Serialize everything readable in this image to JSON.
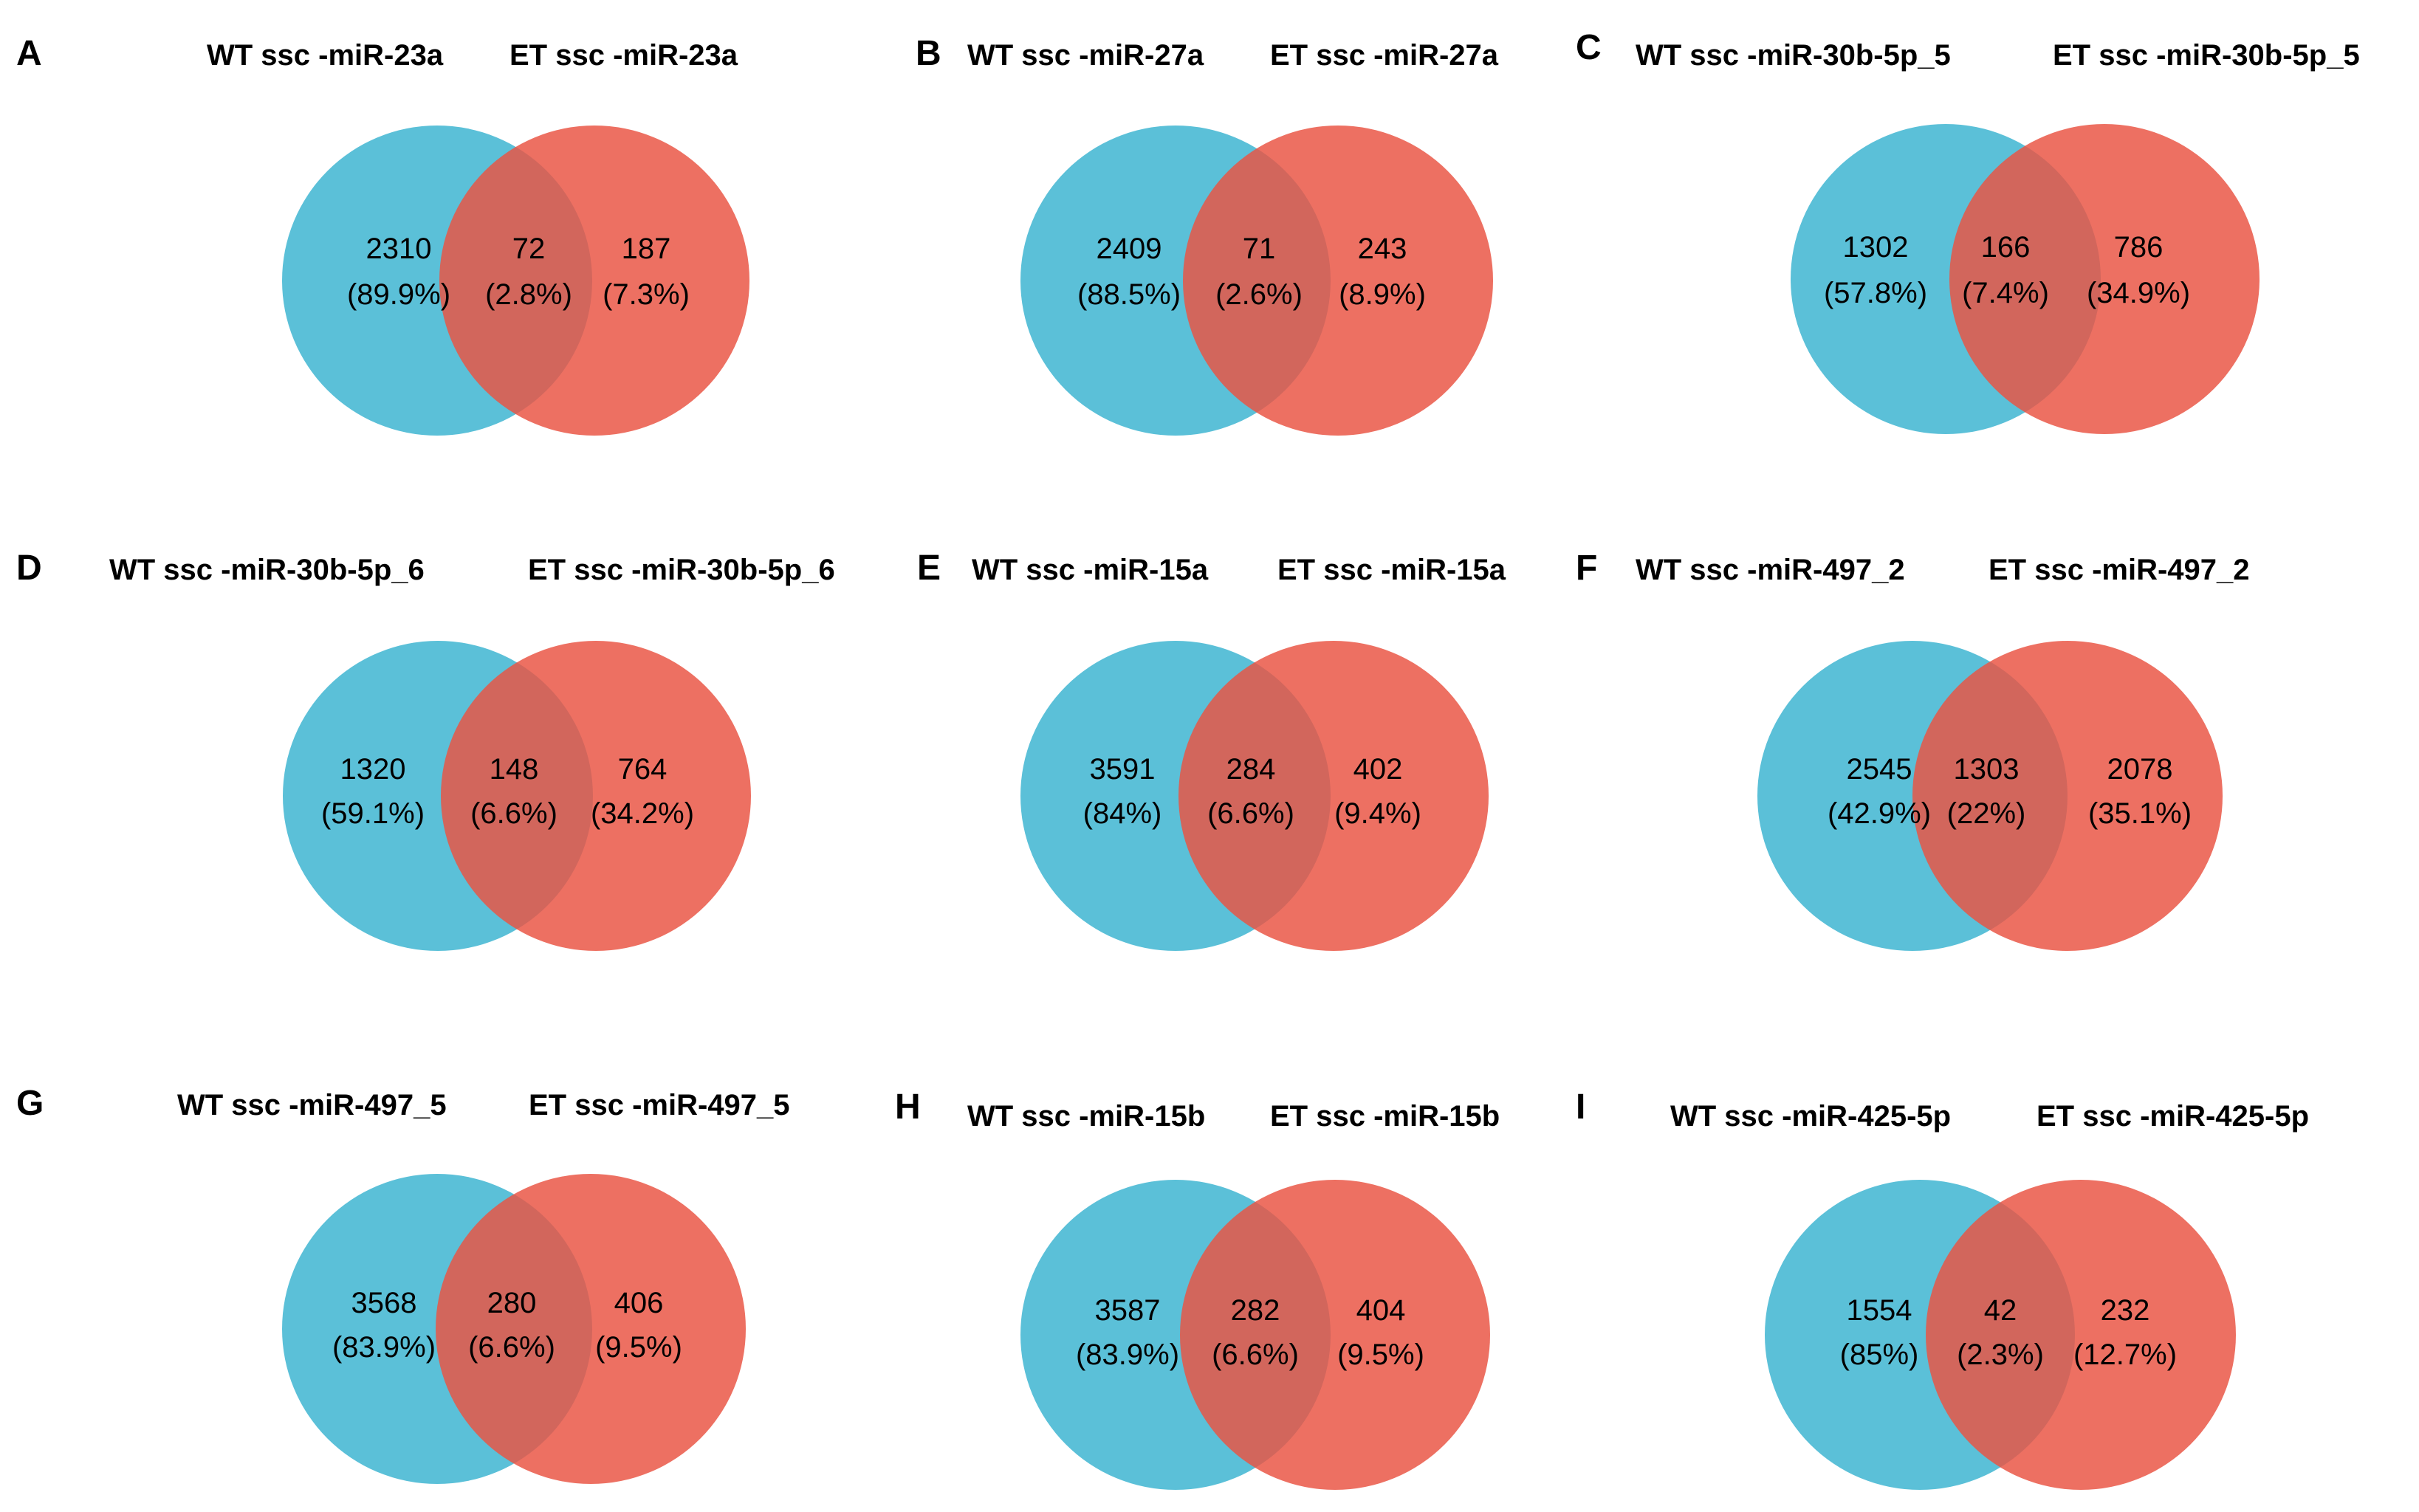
{
  "colors": {
    "wt": "#5bc0d8",
    "et": "#ea5544",
    "overlap": "#c65a50"
  },
  "panels": [
    {
      "letter": "A",
      "title_wt": "WT ssc -miR-23a",
      "title_et": "ET ssc -miR-23a",
      "left": {
        "count": "2310",
        "pct": "(89.9%)"
      },
      "overlap": {
        "count": "72",
        "pct": "(2.8%)"
      },
      "right": {
        "count": "187",
        "pct": "(7.3%)"
      }
    },
    {
      "letter": "B",
      "title_wt": "WT ssc -miR-27a",
      "title_et": "ET ssc -miR-27a",
      "left": {
        "count": "2409",
        "pct": "(88.5%)"
      },
      "overlap": {
        "count": "71",
        "pct": "(2.6%)"
      },
      "right": {
        "count": "243",
        "pct": "(8.9%)"
      }
    },
    {
      "letter": "C",
      "title_wt": "WT ssc  -miR-30b-5p_5",
      "title_et": "ET ssc  -miR-30b-5p_5",
      "left": {
        "count": "1302",
        "pct": "(57.8%)"
      },
      "overlap": {
        "count": "166",
        "pct": "(7.4%)"
      },
      "right": {
        "count": "786",
        "pct": "(34.9%)"
      }
    },
    {
      "letter": "D",
      "title_wt": "WT ssc  -miR-30b-5p_6",
      "title_et": "ET ssc  -miR-30b-5p_6",
      "left": {
        "count": "1320",
        "pct": "(59.1%)"
      },
      "overlap": {
        "count": "148",
        "pct": "(6.6%)"
      },
      "right": {
        "count": "764",
        "pct": "(34.2%)"
      }
    },
    {
      "letter": "E",
      "title_wt": "WT ssc -miR-15a",
      "title_et": "ET ssc -miR-15a",
      "left": {
        "count": "3591",
        "pct": "(84%)"
      },
      "overlap": {
        "count": "284",
        "pct": "(6.6%)"
      },
      "right": {
        "count": "402",
        "pct": "(9.4%)"
      }
    },
    {
      "letter": "F",
      "title_wt": "WT ssc  -miR-497_2",
      "title_et": "ET ssc  -miR-497_2",
      "left": {
        "count": "2545",
        "pct": "(42.9%)"
      },
      "overlap": {
        "count": "1303",
        "pct": "(22%)"
      },
      "right": {
        "count": "2078",
        "pct": "(35.1%)"
      }
    },
    {
      "letter": "G",
      "title_wt": "WT ssc  -miR-497_5",
      "title_et": "ET ssc  -miR-497_5",
      "left": {
        "count": "3568",
        "pct": "(83.9%)"
      },
      "overlap": {
        "count": "280",
        "pct": "(6.6%)"
      },
      "right": {
        "count": "406",
        "pct": "(9.5%)"
      }
    },
    {
      "letter": "H",
      "title_wt": "WT ssc -miR-15b",
      "title_et": "ET ssc -miR-15b",
      "left": {
        "count": "3587",
        "pct": "(83.9%)"
      },
      "overlap": {
        "count": "282",
        "pct": "(6.6%)"
      },
      "right": {
        "count": "404",
        "pct": "(9.5%)"
      }
    },
    {
      "letter": "I",
      "title_wt": "WT ssc  -miR-425-5p",
      "title_et": "ET ssc  -miR-425-5p",
      "left": {
        "count": "1554",
        "pct": "(85%)"
      },
      "overlap": {
        "count": "42",
        "pct": "(2.3%)"
      },
      "right": {
        "count": "232",
        "pct": "(12.7%)"
      }
    }
  ]
}
